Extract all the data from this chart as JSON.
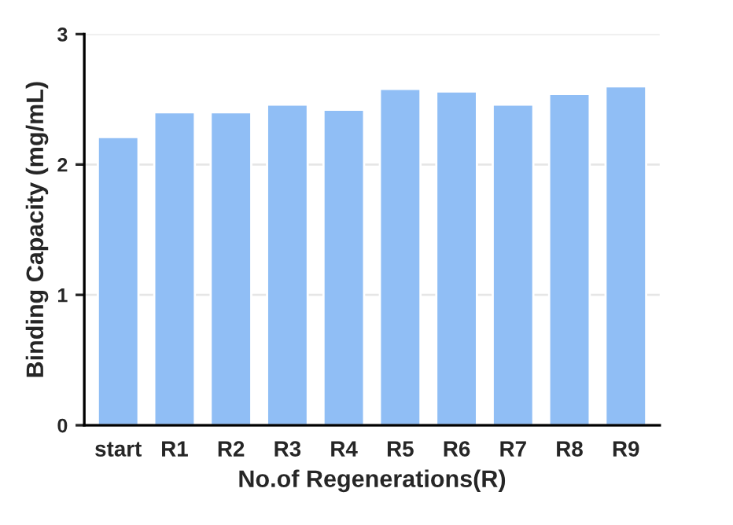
{
  "chart_data": {
    "type": "bar",
    "xlabel": "No.of Regenerations(R)",
    "ylabel": "Binding Capacity (mg/mL)",
    "categories": [
      "start",
      "R1",
      "R2",
      "R3",
      "R4",
      "R5",
      "R6",
      "R7",
      "R8",
      "R9"
    ],
    "values": [
      2.21,
      2.4,
      2.4,
      2.46,
      2.42,
      2.58,
      2.56,
      2.46,
      2.54,
      2.6
    ],
    "color": "#90bef5",
    "ylim": [
      0,
      3
    ],
    "yticks": [
      0,
      1,
      2,
      3
    ],
    "grid": "y"
  }
}
